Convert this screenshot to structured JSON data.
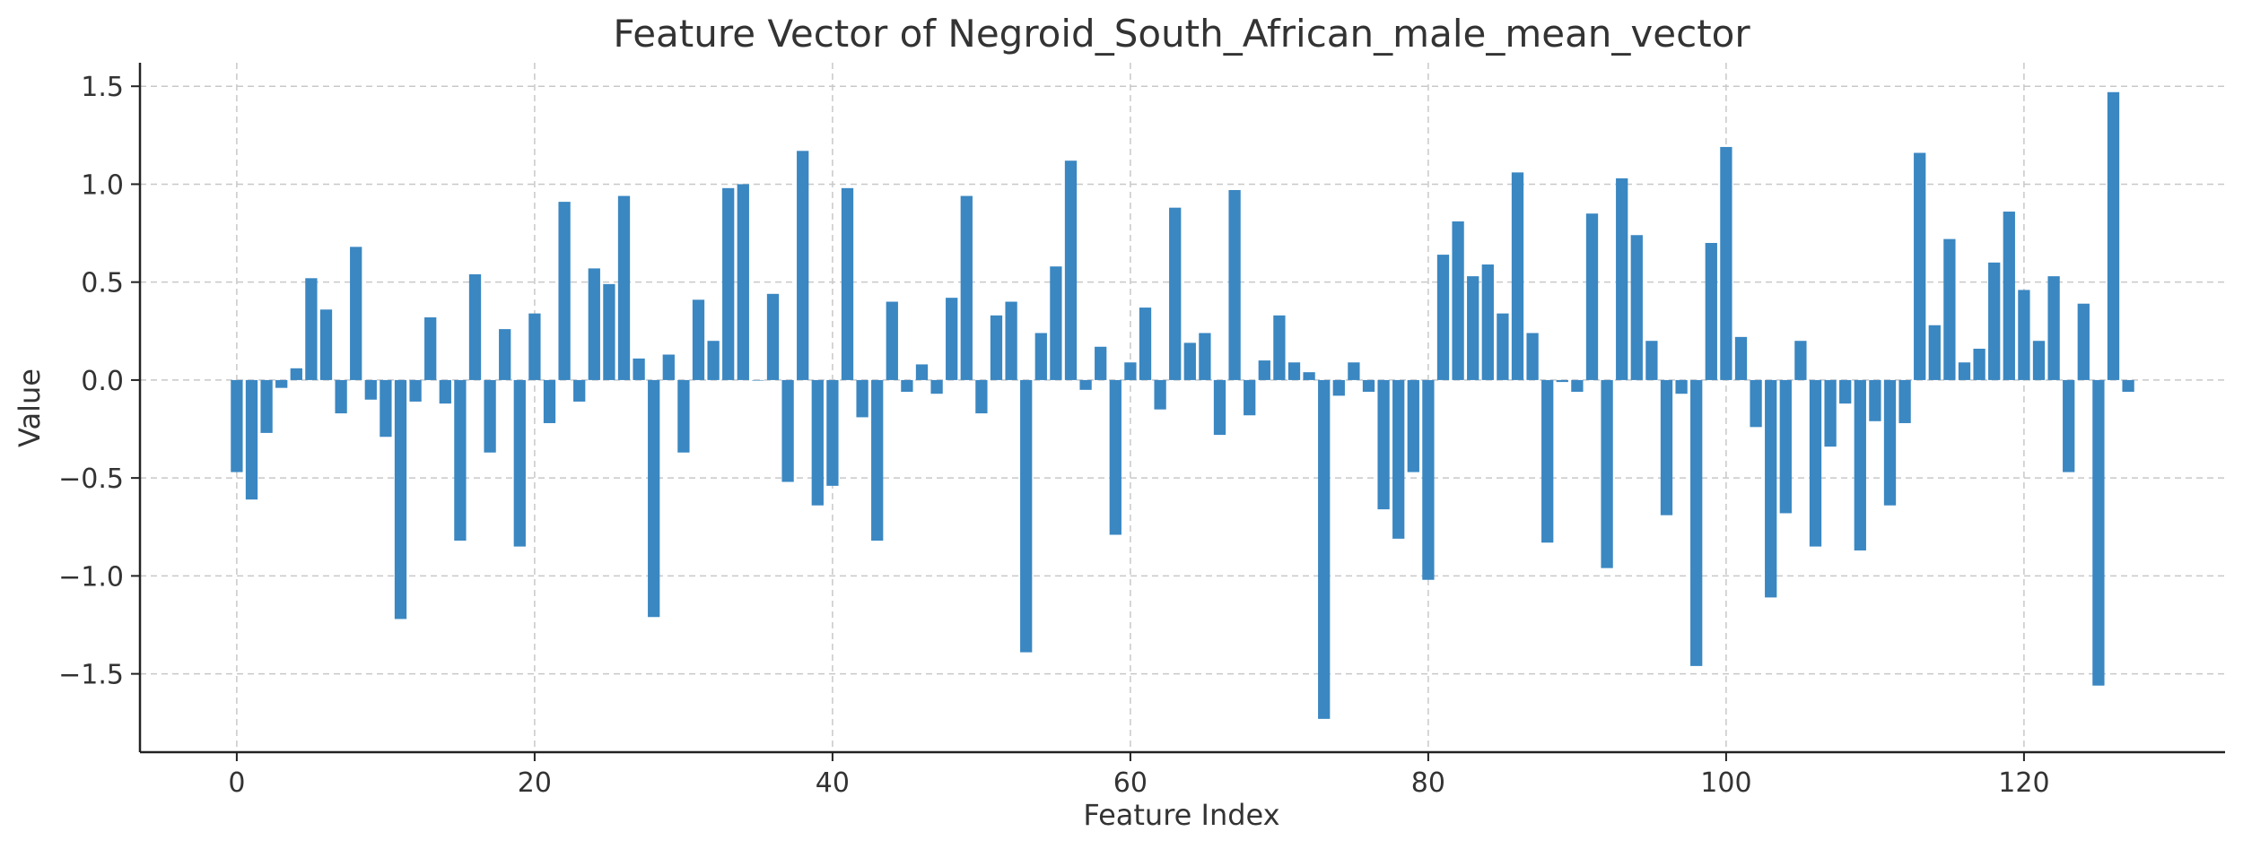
{
  "chart_data": {
    "type": "bar",
    "title": "Feature Vector of Negroid_South_African_male_mean_vector",
    "xlabel": "Feature Index",
    "ylabel": "Value",
    "xlim": [
      -6.5,
      133.5
    ],
    "ylim": [
      -1.9,
      1.62
    ],
    "xticks": [
      0,
      20,
      40,
      60,
      80,
      100,
      120
    ],
    "yticks": [
      -1.5,
      -1.0,
      -0.5,
      0.0,
      0.5,
      1.0,
      1.5
    ],
    "ytick_labels": [
      "−1.5",
      "−1.0",
      "−0.5",
      "0.0",
      "0.5",
      "1.0",
      "1.5"
    ],
    "grid": true,
    "bar_color": "#3a87c2",
    "x": [
      0,
      1,
      2,
      3,
      4,
      5,
      6,
      7,
      8,
      9,
      10,
      11,
      12,
      13,
      14,
      15,
      16,
      17,
      18,
      19,
      20,
      21,
      22,
      23,
      24,
      25,
      26,
      27,
      28,
      29,
      30,
      31,
      32,
      33,
      34,
      35,
      36,
      37,
      38,
      39,
      40,
      41,
      42,
      43,
      44,
      45,
      46,
      47,
      48,
      49,
      50,
      51,
      52,
      53,
      54,
      55,
      56,
      57,
      58,
      59,
      60,
      61,
      62,
      63,
      64,
      65,
      66,
      67,
      68,
      69,
      70,
      71,
      72,
      73,
      74,
      75,
      76,
      77,
      78,
      79,
      80,
      81,
      82,
      83,
      84,
      85,
      86,
      87,
      88,
      89,
      90,
      91,
      92,
      93,
      94,
      95,
      96,
      97,
      98,
      99,
      100,
      101,
      102,
      103,
      104,
      105,
      106,
      107,
      108,
      109,
      110,
      111,
      112,
      113,
      114,
      115,
      116,
      117,
      118,
      119,
      120,
      121,
      122,
      123,
      124,
      125,
      126,
      127
    ],
    "values": [
      -0.47,
      -0.61,
      -0.27,
      -0.04,
      0.06,
      0.52,
      0.36,
      -0.17,
      0.68,
      -0.1,
      -0.29,
      -1.22,
      -0.11,
      0.32,
      -0.12,
      -0.82,
      0.54,
      -0.37,
      0.26,
      -0.85,
      0.34,
      -0.22,
      0.91,
      -0.11,
      0.57,
      0.49,
      0.94,
      0.11,
      -1.21,
      0.13,
      -0.37,
      0.41,
      0.2,
      0.98,
      1.0,
      0.0,
      0.44,
      -0.52,
      1.17,
      -0.64,
      -0.54,
      0.98,
      -0.19,
      -0.82,
      0.4,
      -0.06,
      0.08,
      -0.07,
      0.42,
      0.94,
      -0.17,
      0.33,
      0.4,
      -1.39,
      0.24,
      0.58,
      1.12,
      -0.05,
      0.17,
      -0.79,
      0.09,
      0.37,
      -0.15,
      0.88,
      0.19,
      0.24,
      -0.28,
      0.97,
      -0.18,
      0.1,
      0.33,
      0.09,
      0.04,
      -1.73,
      -0.08,
      0.09,
      -0.06,
      -0.66,
      -0.81,
      -0.47,
      -1.02,
      0.64,
      0.81,
      0.53,
      0.59,
      0.34,
      1.06,
      0.24,
      -0.83,
      -0.01,
      -0.06,
      0.85,
      -0.96,
      1.03,
      0.74,
      0.2,
      -0.69,
      -0.07,
      -1.46,
      0.7,
      1.19,
      0.22,
      -0.24,
      -1.11,
      -0.68,
      0.2,
      -0.85,
      -0.34,
      -0.12,
      -0.87,
      -0.21,
      -0.64,
      -0.22,
      1.16,
      0.28,
      0.72,
      0.09,
      0.16,
      0.6,
      0.86,
      0.46,
      0.2,
      0.53,
      -0.47,
      0.39,
      -1.56,
      1.47,
      -0.06
    ]
  }
}
